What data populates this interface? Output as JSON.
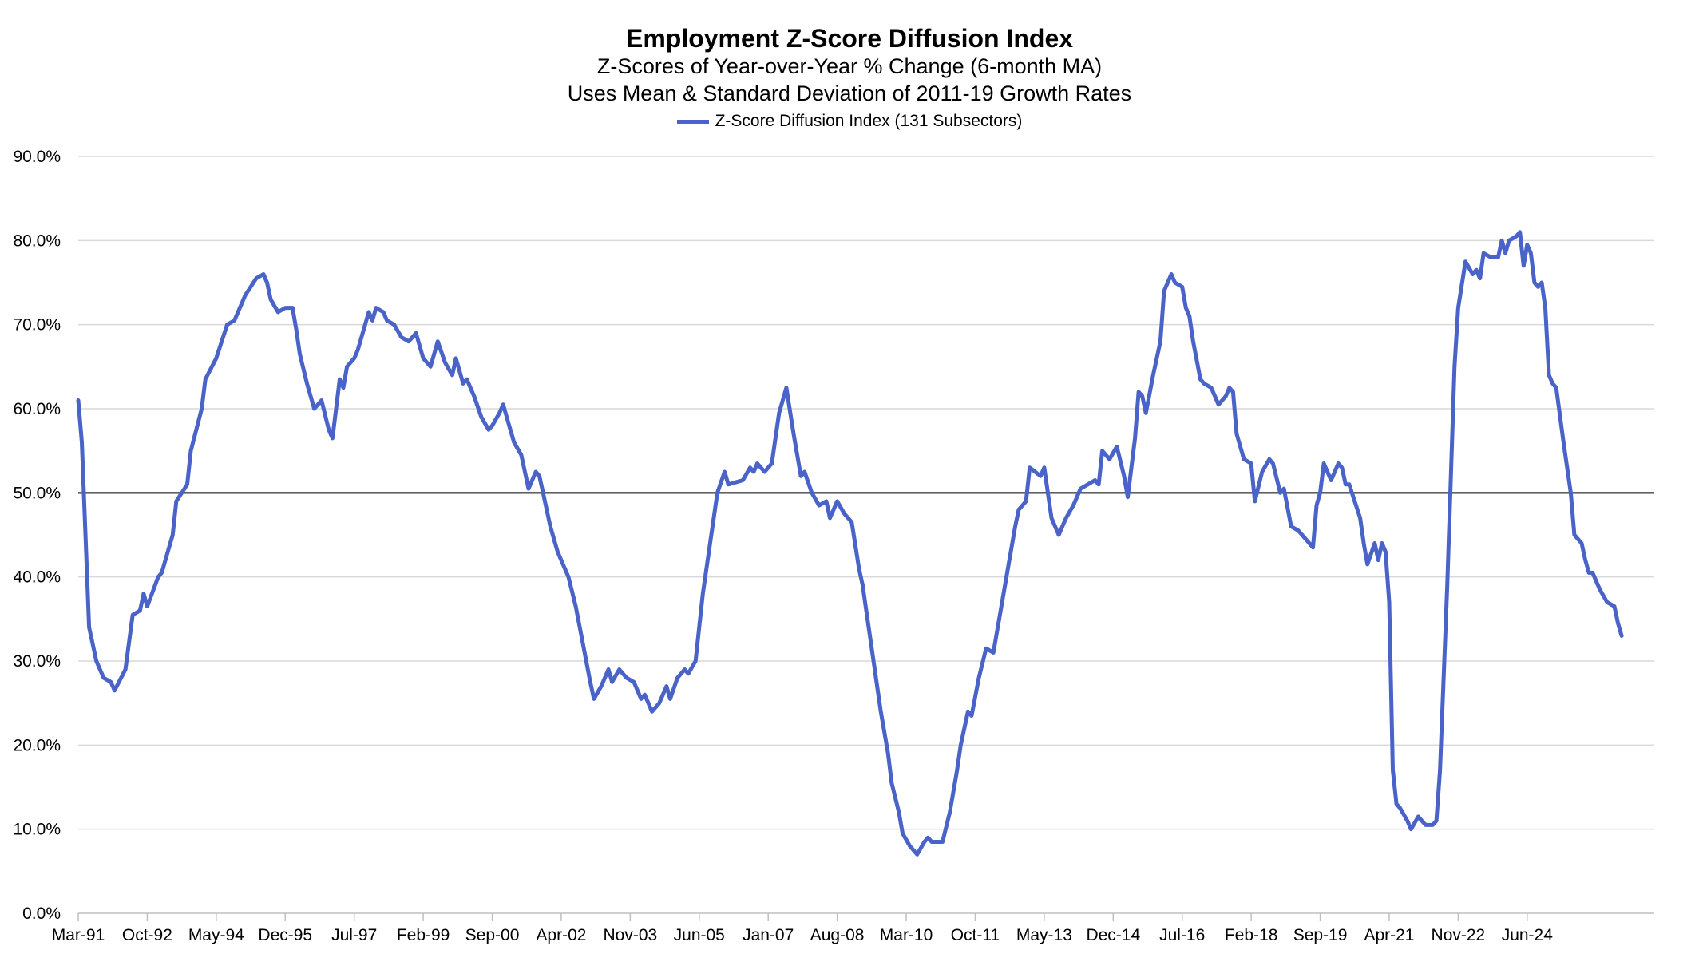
{
  "chart_data": {
    "type": "line",
    "title": "Employment Z-Score Diffusion Index",
    "subtitle": [
      "Z-Scores of Year-over-Year % Change (6-month MA)",
      "Uses Mean & Standard Deviation of 2011-19 Growth Rates"
    ],
    "legend": {
      "position": "top-center",
      "entries": [
        "Z-Score Diffusion Index (131 Subsectors)"
      ]
    },
    "xlabel": "",
    "ylabel": "",
    "ylim": [
      0,
      90
    ],
    "y_ticks": [
      "0.0%",
      "10.0%",
      "20.0%",
      "30.0%",
      "40.0%",
      "50.0%",
      "60.0%",
      "70.0%",
      "80.0%",
      "90.0%"
    ],
    "x_ticks": [
      "Mar-91",
      "Oct-92",
      "May-94",
      "Dec-95",
      "Jul-97",
      "Feb-99",
      "Sep-00",
      "Apr-02",
      "Nov-03",
      "Jun-05",
      "Jan-07",
      "Aug-08",
      "Mar-10",
      "Oct-11",
      "May-13",
      "Dec-14",
      "Jul-16",
      "Feb-18",
      "Sep-19",
      "Apr-21",
      "Nov-22",
      "Jun-24"
    ],
    "reference_line": 50,
    "grid": "horizontal",
    "colors": {
      "series": "#4a63c8",
      "grid": "#d9d9d9",
      "reference": "#000000"
    },
    "series": [
      {
        "name": "Z-Score Diffusion Index (131 Subsectors)",
        "points": [
          [
            "Mar-91",
            61.0
          ],
          [
            "Apr-91",
            56.0
          ],
          [
            "Jun-91",
            34.0
          ],
          [
            "Aug-91",
            30.0
          ],
          [
            "Oct-91",
            28.0
          ],
          [
            "Dec-91",
            27.5
          ],
          [
            "Jan-92",
            26.5
          ],
          [
            "Apr-92",
            29.0
          ],
          [
            "Jun-92",
            35.5
          ],
          [
            "Aug-92",
            36.0
          ],
          [
            "Sep-92",
            38.0
          ],
          [
            "Oct-92",
            36.5
          ],
          [
            "Jan-93",
            40.0
          ],
          [
            "Feb-93",
            40.5
          ],
          [
            "May-93",
            45.0
          ],
          [
            "Jun-93",
            49.0
          ],
          [
            "Sep-93",
            51.0
          ],
          [
            "Oct-93",
            55.0
          ],
          [
            "Jan-94",
            60.0
          ],
          [
            "Feb-94",
            63.5
          ],
          [
            "May-94",
            66.0
          ],
          [
            "Aug-94",
            70.0
          ],
          [
            "Oct-94",
            70.5
          ],
          [
            "Jan-95",
            73.5
          ],
          [
            "Apr-95",
            75.5
          ],
          [
            "Jun-95",
            76.0
          ],
          [
            "Jul-95",
            75.0
          ],
          [
            "Aug-95",
            73.0
          ],
          [
            "Oct-95",
            71.5
          ],
          [
            "Dec-95",
            72.0
          ],
          [
            "Feb-96",
            72.0
          ],
          [
            "Mar-96",
            69.5
          ],
          [
            "Apr-96",
            66.5
          ],
          [
            "Jun-96",
            63.0
          ],
          [
            "Aug-96",
            60.0
          ],
          [
            "Oct-96",
            61.0
          ],
          [
            "Dec-96",
            57.5
          ],
          [
            "Jan-97",
            56.5
          ],
          [
            "Mar-97",
            63.5
          ],
          [
            "Apr-97",
            62.5
          ],
          [
            "May-97",
            65.0
          ],
          [
            "Jul-97",
            66.0
          ],
          [
            "Aug-97",
            67.0
          ],
          [
            "Oct-97",
            70.0
          ],
          [
            "Nov-97",
            71.5
          ],
          [
            "Dec-97",
            70.5
          ],
          [
            "Jan-98",
            72.0
          ],
          [
            "Mar-98",
            71.5
          ],
          [
            "Apr-98",
            70.5
          ],
          [
            "Jun-98",
            70.0
          ],
          [
            "Aug-98",
            68.5
          ],
          [
            "Oct-98",
            68.0
          ],
          [
            "Dec-98",
            69.0
          ],
          [
            "Feb-99",
            66.0
          ],
          [
            "Apr-99",
            65.0
          ],
          [
            "Jun-99",
            68.0
          ],
          [
            "Aug-99",
            65.5
          ],
          [
            "Oct-99",
            64.0
          ],
          [
            "Nov-99",
            66.0
          ],
          [
            "Jan-00",
            63.0
          ],
          [
            "Feb-00",
            63.5
          ],
          [
            "Apr-00",
            61.5
          ],
          [
            "Jun-00",
            59.0
          ],
          [
            "Aug-00",
            57.5
          ],
          [
            "Sep-00",
            58.0
          ],
          [
            "Nov-00",
            59.5
          ],
          [
            "Dec-00",
            60.5
          ],
          [
            "Jan-01",
            59.0
          ],
          [
            "Mar-01",
            56.0
          ],
          [
            "May-01",
            54.5
          ],
          [
            "Jul-01",
            50.5
          ],
          [
            "Sep-01",
            52.5
          ],
          [
            "Oct-01",
            52.0
          ],
          [
            "Nov-01",
            50.0
          ],
          [
            "Jan-02",
            46.0
          ],
          [
            "Mar-02",
            43.0
          ],
          [
            "Apr-02",
            42.0
          ],
          [
            "Jun-02",
            40.0
          ],
          [
            "Aug-02",
            36.5
          ],
          [
            "Oct-02",
            32.0
          ],
          [
            "Dec-02",
            27.5
          ],
          [
            "Jan-03",
            25.5
          ],
          [
            "Mar-03",
            27.0
          ],
          [
            "May-03",
            29.0
          ],
          [
            "Jun-03",
            27.5
          ],
          [
            "Aug-03",
            29.0
          ],
          [
            "Oct-03",
            28.0
          ],
          [
            "Dec-03",
            27.5
          ],
          [
            "Feb-04",
            25.5
          ],
          [
            "Mar-04",
            26.0
          ],
          [
            "May-04",
            24.0
          ],
          [
            "Jul-04",
            25.0
          ],
          [
            "Sep-04",
            27.0
          ],
          [
            "Oct-04",
            25.5
          ],
          [
            "Dec-04",
            28.0
          ],
          [
            "Feb-05",
            29.0
          ],
          [
            "Mar-05",
            28.5
          ],
          [
            "May-05",
            30.0
          ],
          [
            "Jul-05",
            38.0
          ],
          [
            "Sep-05",
            44.0
          ],
          [
            "Nov-05",
            50.0
          ],
          [
            "Jan-06",
            52.5
          ],
          [
            "Feb-06",
            51.0
          ],
          [
            "Jun-06",
            51.5
          ],
          [
            "Aug-06",
            53.0
          ],
          [
            "Sep-06",
            52.5
          ],
          [
            "Oct-06",
            53.5
          ],
          [
            "Dec-06",
            52.5
          ],
          [
            "Jan-07",
            53.0
          ],
          [
            "Feb-07",
            53.5
          ],
          [
            "Apr-07",
            59.5
          ],
          [
            "Jun-07",
            62.5
          ],
          [
            "Aug-07",
            57.0
          ],
          [
            "Oct-07",
            52.0
          ],
          [
            "Nov-07",
            52.5
          ],
          [
            "Jan-08",
            50.0
          ],
          [
            "Mar-08",
            48.5
          ],
          [
            "May-08",
            49.0
          ],
          [
            "Jun-08",
            47.0
          ],
          [
            "Aug-08",
            49.0
          ],
          [
            "Oct-08",
            47.5
          ],
          [
            "Nov-08",
            47.0
          ],
          [
            "Dec-08",
            46.5
          ],
          [
            "Feb-09",
            41.0
          ],
          [
            "Mar-09",
            39.0
          ],
          [
            "Apr-09",
            36.0
          ],
          [
            "Jun-09",
            30.0
          ],
          [
            "Aug-09",
            24.0
          ],
          [
            "Oct-09",
            19.0
          ],
          [
            "Nov-09",
            15.5
          ],
          [
            "Jan-10",
            12.0
          ],
          [
            "Feb-10",
            9.5
          ],
          [
            "Apr-10",
            8.0
          ],
          [
            "Jun-10",
            7.0
          ],
          [
            "Aug-10",
            8.5
          ],
          [
            "Sep-10",
            9.0
          ],
          [
            "Oct-10",
            8.5
          ],
          [
            "Jan-11",
            8.5
          ],
          [
            "Mar-11",
            12.0
          ],
          [
            "May-11",
            17.0
          ],
          [
            "Jun-11",
            20.0
          ],
          [
            "Aug-11",
            24.0
          ],
          [
            "Sep-11",
            23.5
          ],
          [
            "Nov-11",
            28.0
          ],
          [
            "Jan-12",
            31.5
          ],
          [
            "Mar-12",
            31.0
          ],
          [
            "May-12",
            36.0
          ],
          [
            "Jul-12",
            41.0
          ],
          [
            "Sep-12",
            46.0
          ],
          [
            "Oct-12",
            48.0
          ],
          [
            "Dec-12",
            49.0
          ],
          [
            "Jan-13",
            53.0
          ],
          [
            "Apr-13",
            52.0
          ],
          [
            "May-13",
            53.0
          ],
          [
            "Jul-13",
            47.0
          ],
          [
            "Sep-13",
            45.0
          ],
          [
            "Nov-13",
            47.0
          ],
          [
            "Jan-14",
            48.5
          ],
          [
            "Mar-14",
            50.5
          ],
          [
            "May-14",
            51.0
          ],
          [
            "Jul-14",
            51.5
          ],
          [
            "Aug-14",
            51.0
          ],
          [
            "Sep-14",
            55.0
          ],
          [
            "Nov-14",
            54.0
          ],
          [
            "Jan-15",
            55.5
          ],
          [
            "Mar-15",
            52.0
          ],
          [
            "Apr-15",
            49.5
          ],
          [
            "Jun-15",
            56.5
          ],
          [
            "Jul-15",
            62.0
          ],
          [
            "Aug-15",
            61.5
          ],
          [
            "Sep-15",
            59.5
          ],
          [
            "Nov-15",
            64.0
          ],
          [
            "Jan-16",
            68.0
          ],
          [
            "Feb-16",
            74.0
          ],
          [
            "Apr-16",
            76.0
          ],
          [
            "May-16",
            75.0
          ],
          [
            "Jul-16",
            74.5
          ],
          [
            "Aug-16",
            72.0
          ],
          [
            "Sep-16",
            71.0
          ],
          [
            "Oct-16",
            68.0
          ],
          [
            "Dec-16",
            63.5
          ],
          [
            "Jan-17",
            63.0
          ],
          [
            "Mar-17",
            62.5
          ],
          [
            "May-17",
            60.5
          ],
          [
            "Jul-17",
            61.5
          ],
          [
            "Aug-17",
            62.5
          ],
          [
            "Sep-17",
            62.0
          ],
          [
            "Oct-17",
            57.0
          ],
          [
            "Dec-17",
            54.0
          ],
          [
            "Feb-18",
            53.5
          ],
          [
            "Mar-18",
            49.0
          ],
          [
            "May-18",
            52.5
          ],
          [
            "Jul-18",
            54.0
          ],
          [
            "Aug-18",
            53.5
          ],
          [
            "Oct-18",
            50.0
          ],
          [
            "Nov-18",
            50.5
          ],
          [
            "Jan-19",
            46.0
          ],
          [
            "Mar-19",
            45.5
          ],
          [
            "May-19",
            44.5
          ],
          [
            "Jul-19",
            43.5
          ],
          [
            "Aug-19",
            48.5
          ],
          [
            "Sep-19",
            50.0
          ],
          [
            "Oct-19",
            53.5
          ],
          [
            "Dec-19",
            51.5
          ],
          [
            "Feb-20",
            53.5
          ],
          [
            "Mar-20",
            53.0
          ],
          [
            "Apr-20",
            51.0
          ],
          [
            "May-20",
            51.0
          ],
          [
            "Aug-20",
            47.0
          ],
          [
            "Sep-20",
            44.0
          ],
          [
            "Oct-20",
            41.5
          ],
          [
            "Dec-20",
            44.0
          ],
          [
            "Jan-21",
            42.0
          ],
          [
            "Feb-21",
            44.0
          ],
          [
            "Mar-21",
            43.0
          ],
          [
            "Apr-21",
            37.0
          ],
          [
            "May-21",
            17.0
          ],
          [
            "Jun-21",
            13.0
          ],
          [
            "Jul-21",
            12.5
          ],
          [
            "Sep-21",
            11.0
          ],
          [
            "Oct-21",
            10.0
          ],
          [
            "Dec-21",
            11.5
          ],
          [
            "Feb-22",
            10.5
          ],
          [
            "Apr-22",
            10.5
          ],
          [
            "May-22",
            11.0
          ],
          [
            "Jun-22",
            17.0
          ],
          [
            "Aug-22",
            39.0
          ],
          [
            "Oct-22",
            65.0
          ],
          [
            "Nov-22",
            72.0
          ],
          [
            "Jan-23",
            77.5
          ],
          [
            "Mar-23",
            76.0
          ],
          [
            "Apr-23",
            76.5
          ],
          [
            "May-23",
            75.5
          ],
          [
            "Jun-23",
            78.5
          ],
          [
            "Aug-23",
            78.0
          ],
          [
            "Oct-23",
            78.0
          ],
          [
            "Nov-23",
            80.0
          ],
          [
            "Dec-23",
            78.5
          ],
          [
            "Jan-24",
            80.0
          ],
          [
            "Mar-24",
            80.5
          ],
          [
            "Apr-24",
            81.0
          ],
          [
            "May-24",
            77.0
          ],
          [
            "Jun-24",
            79.5
          ],
          [
            "Jul-24",
            78.5
          ],
          [
            "Aug-24",
            75.0
          ],
          [
            "Sep-24",
            74.5
          ],
          [
            "Oct-24",
            75.0
          ],
          [
            "Nov-24",
            72.0
          ],
          [
            "Dec-24",
            64.0
          ],
          [
            "Jan-25",
            63.0
          ],
          [
            "Feb-25",
            62.5
          ],
          [
            "Apr-25",
            56.0
          ],
          [
            "Jun-25",
            50.0
          ],
          [
            "Jul-25",
            45.0
          ],
          [
            "Aug-25",
            44.5
          ],
          [
            "Sep-25",
            44.0
          ],
          [
            "Oct-25",
            42.0
          ],
          [
            "Nov-25",
            40.5
          ],
          [
            "Dec-25",
            40.5
          ],
          [
            "Feb-26",
            38.5
          ],
          [
            "Apr-26",
            37.0
          ],
          [
            "Jun-26",
            36.5
          ],
          [
            "Jul-26",
            34.5
          ],
          [
            "Aug-26",
            33.0
          ]
        ]
      }
    ]
  }
}
